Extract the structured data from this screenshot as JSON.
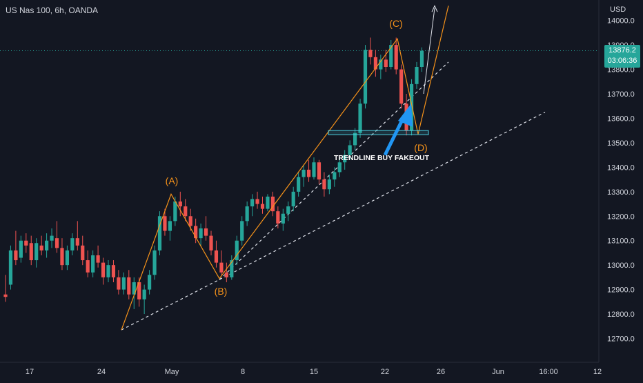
{
  "header": {
    "symbol_title": "US Nas 100, 6h, OANDA"
  },
  "currency": "USD",
  "current_price": {
    "price": "13876.2",
    "countdown": "03:06:36",
    "value": 13876.2
  },
  "colors": {
    "bg": "#131722",
    "up": "#26a69a",
    "down": "#ef5350",
    "pattern": "#f7931a",
    "text": "#d1d4dc",
    "arrow": "#2196f3",
    "zone": "#4dd0e1",
    "grid": "#2a2e39"
  },
  "labels": {
    "A": "(A)",
    "B": "(B)",
    "C": "(C)",
    "D": "(D)",
    "annotation": "TRENDLINE BUY FAKEOUT"
  },
  "chart_data": {
    "type": "candlestick",
    "title": "US Nas 100, 6h, OANDA",
    "ylabel": "USD",
    "ylim": [
      12640,
      14080
    ],
    "y_ticks": [
      12700,
      12800,
      12900,
      13000,
      13100,
      13200,
      13300,
      13400,
      13500,
      13600,
      13700,
      13800,
      13900,
      14000
    ],
    "x_ticks": [
      "17",
      "24",
      "May",
      "8",
      "15",
      "22",
      "26",
      "Jun",
      "16:00",
      "12"
    ],
    "grid": false,
    "legend": "none",
    "ohlc": [
      [
        12880,
        12960,
        12850,
        12870
      ],
      [
        12920,
        13080,
        12900,
        13060
      ],
      [
        13060,
        13140,
        13000,
        13020
      ],
      [
        13030,
        13120,
        13010,
        13100
      ],
      [
        13100,
        13130,
        13050,
        13080
      ],
      [
        13090,
        13120,
        13000,
        13020
      ],
      [
        13020,
        13110,
        12990,
        13090
      ],
      [
        13080,
        13120,
        13040,
        13060
      ],
      [
        13060,
        13130,
        13030,
        13100
      ],
      [
        13100,
        13150,
        13070,
        13120
      ],
      [
        13110,
        13180,
        13050,
        13070
      ],
      [
        13070,
        13110,
        12980,
        13000
      ],
      [
        13000,
        13080,
        12980,
        13060
      ],
      [
        13060,
        13130,
        13040,
        13110
      ],
      [
        13110,
        13180,
        13060,
        13080
      ],
      [
        13080,
        13120,
        13000,
        13020
      ],
      [
        13020,
        13060,
        12950,
        12970
      ],
      [
        12970,
        13060,
        12950,
        13040
      ],
      [
        13040,
        13080,
        12990,
        13010
      ],
      [
        13010,
        13030,
        12920,
        12950
      ],
      [
        12950,
        13020,
        12930,
        13000
      ],
      [
        13000,
        13020,
        12930,
        12950
      ],
      [
        12950,
        12980,
        12880,
        12900
      ],
      [
        12900,
        12970,
        12880,
        12950
      ],
      [
        12950,
        12980,
        12860,
        12880
      ],
      [
        12880,
        12950,
        12820,
        12930
      ],
      [
        12930,
        12950,
        12830,
        12860
      ],
      [
        12860,
        12920,
        12800,
        12900
      ],
      [
        12900,
        12980,
        12880,
        12960
      ],
      [
        12960,
        13080,
        12940,
        13060
      ],
      [
        13060,
        13220,
        13040,
        13200
      ],
      [
        13200,
        13230,
        13120,
        13140
      ],
      [
        13140,
        13200,
        13100,
        13180
      ],
      [
        13180,
        13280,
        13160,
        13260
      ],
      [
        13260,
        13300,
        13200,
        13240
      ],
      [
        13240,
        13270,
        13180,
        13200
      ],
      [
        13200,
        13230,
        13140,
        13160
      ],
      [
        13160,
        13190,
        13090,
        13110
      ],
      [
        13110,
        13170,
        13080,
        13150
      ],
      [
        13150,
        13200,
        13100,
        13120
      ],
      [
        13120,
        13140,
        13040,
        13060
      ],
      [
        13060,
        13100,
        12990,
        13010
      ],
      [
        13010,
        13060,
        12960,
        12970
      ],
      [
        12970,
        13010,
        12930,
        12950
      ],
      [
        12950,
        13040,
        12940,
        13020
      ],
      [
        13020,
        13120,
        13000,
        13100
      ],
      [
        13100,
        13200,
        13080,
        13180
      ],
      [
        13180,
        13260,
        13160,
        13240
      ],
      [
        13240,
        13290,
        13200,
        13270
      ],
      [
        13270,
        13300,
        13230,
        13250
      ],
      [
        13250,
        13280,
        13210,
        13230
      ],
      [
        13230,
        13290,
        13220,
        13280
      ],
      [
        13280,
        13300,
        13200,
        13220
      ],
      [
        13220,
        13240,
        13150,
        13170
      ],
      [
        13170,
        13230,
        13140,
        13210
      ],
      [
        13210,
        13260,
        13180,
        13240
      ],
      [
        13240,
        13320,
        13220,
        13300
      ],
      [
        13300,
        13380,
        13280,
        13360
      ],
      [
        13360,
        13410,
        13320,
        13390
      ],
      [
        13390,
        13430,
        13340,
        13360
      ],
      [
        13360,
        13440,
        13350,
        13420
      ],
      [
        13420,
        13430,
        13330,
        13350
      ],
      [
        13350,
        13380,
        13280,
        13310
      ],
      [
        13310,
        13370,
        13290,
        13350
      ],
      [
        13350,
        13400,
        13320,
        13380
      ],
      [
        13380,
        13440,
        13360,
        13420
      ],
      [
        13420,
        13470,
        13390,
        13450
      ],
      [
        13450,
        13510,
        13430,
        13490
      ],
      [
        13490,
        13560,
        13470,
        13540
      ],
      [
        13540,
        13680,
        13520,
        13660
      ],
      [
        13660,
        13900,
        13640,
        13880
      ],
      [
        13880,
        13930,
        13820,
        13850
      ],
      [
        13850,
        13880,
        13770,
        13800
      ],
      [
        13800,
        13860,
        13760,
        13840
      ],
      [
        13840,
        13880,
        13790,
        13810
      ],
      [
        13810,
        13920,
        13800,
        13900
      ],
      [
        13900,
        13930,
        13780,
        13800
      ],
      [
        13800,
        13820,
        13640,
        13660
      ],
      [
        13660,
        13700,
        13530,
        13550
      ],
      [
        13550,
        13760,
        13530,
        13740
      ],
      [
        13740,
        13830,
        13720,
        13810
      ],
      [
        13810,
        13890,
        13790,
        13876.2
      ]
    ]
  }
}
